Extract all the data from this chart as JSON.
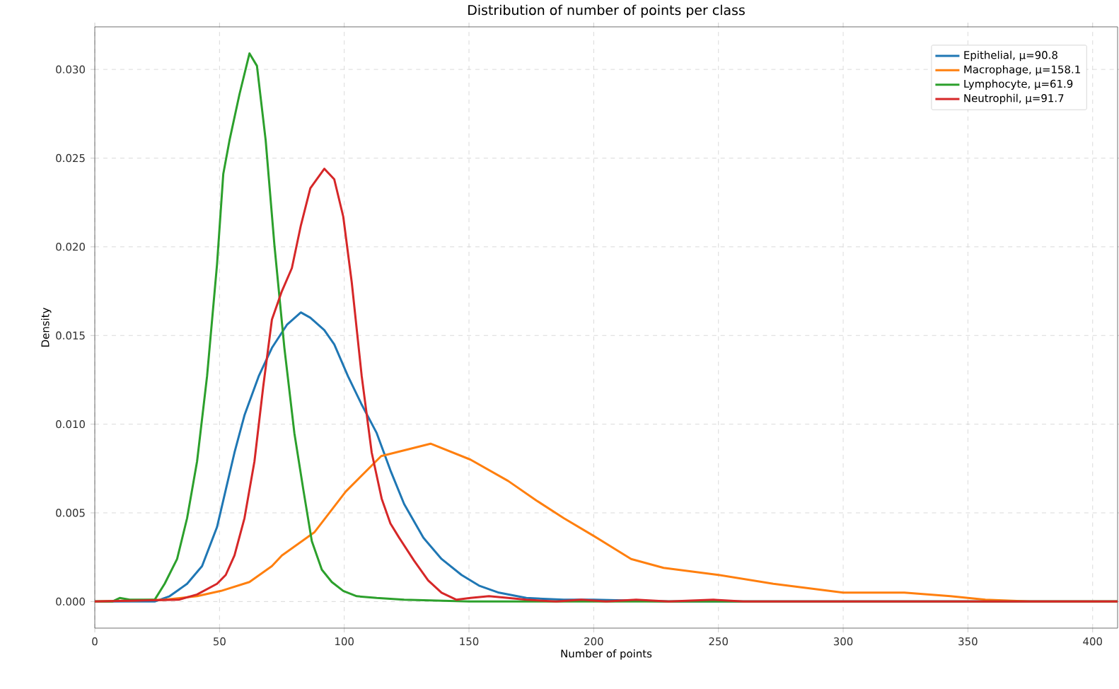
{
  "chart_data": {
    "type": "line",
    "title": "Distribution of number of points per class",
    "xlabel": "Number of points",
    "ylabel": "Density",
    "xlim": [
      0,
      410
    ],
    "ylim": [
      -0.0015,
      0.0324
    ],
    "xticks": [
      0,
      50,
      100,
      150,
      200,
      250,
      300,
      350,
      400
    ],
    "yticks": [
      {
        "value": 0,
        "label": "0.000"
      },
      {
        "value": 0.005,
        "label": "0.005"
      },
      {
        "value": 0.01,
        "label": "0.010"
      },
      {
        "value": 0.015,
        "label": "0.015"
      },
      {
        "value": 0.02,
        "label": "0.020"
      },
      {
        "value": 0.025,
        "label": "0.025"
      },
      {
        "value": 0.03,
        "label": "0.030"
      }
    ],
    "grid": true,
    "legend": "top right",
    "marker": "none",
    "line_style": "solid",
    "series": [
      {
        "name": "Epithelial, μ=90.8",
        "color": "#1f77b4",
        "x": [
          0,
          24,
          30,
          37,
          43,
          49,
          52.5,
          56,
          60,
          65.7,
          71,
          77,
          82.6,
          86.4,
          92,
          96,
          101.5,
          107,
          113,
          118.5,
          124,
          131.7,
          139,
          147,
          154,
          162,
          173,
          188,
          200,
          230,
          410
        ],
        "values": [
          0,
          0,
          0.0003,
          0.001,
          0.002,
          0.0042,
          0.0063,
          0.0084,
          0.0105,
          0.0127,
          0.0143,
          0.0156,
          0.0163,
          0.016,
          0.0153,
          0.0145,
          0.0127,
          0.0111,
          0.0095,
          0.0074,
          0.0055,
          0.0036,
          0.0024,
          0.0015,
          0.0009,
          0.0005,
          0.0002,
          0.0001,
          0.0001,
          0,
          0
        ]
      },
      {
        "name": "Macrophage, μ=158.1",
        "color": "#ff7f0e",
        "x": [
          0,
          28,
          41,
          50.6,
          62,
          71,
          75,
          88,
          100.6,
          114.8,
          134.6,
          150.6,
          165.7,
          177,
          188,
          200,
          215,
          228,
          250,
          272,
          300,
          324.5,
          343,
          357,
          375,
          410
        ],
        "values": [
          0,
          0.0001,
          0.0003,
          0.0006,
          0.0011,
          0.002,
          0.0026,
          0.0039,
          0.0062,
          0.0082,
          0.0089,
          0.008,
          0.0068,
          0.0057,
          0.0047,
          0.0037,
          0.0024,
          0.0019,
          0.0015,
          0.001,
          0.0005,
          0.0005,
          0.0003,
          0.0001,
          0,
          0
        ]
      },
      {
        "name": "Lymphocyte, μ=61.9",
        "color": "#2ca02c",
        "x": [
          0,
          7,
          10,
          14,
          24,
          28,
          33,
          37,
          41,
          45,
          49,
          51.5,
          54,
          58,
          62,
          65,
          68.5,
          72,
          76,
          80,
          83.6,
          87,
          91,
          95,
          99.6,
          105,
          113,
          124,
          150,
          410
        ],
        "values": [
          0,
          0,
          0.0002,
          0.0001,
          0.0001,
          0.001,
          0.0024,
          0.0047,
          0.0079,
          0.0127,
          0.019,
          0.0241,
          0.026,
          0.0286,
          0.0309,
          0.0302,
          0.026,
          0.0201,
          0.0143,
          0.0095,
          0.0063,
          0.0034,
          0.0018,
          0.0011,
          0.0006,
          0.0003,
          0.0002,
          0.0001,
          0,
          0
        ]
      },
      {
        "name": "Neutrophil, μ=91.7",
        "color": "#d62728",
        "x": [
          0,
          33.6,
          41,
          49,
          52.5,
          56,
          60,
          64,
          67.5,
          71,
          75,
          79,
          82.6,
          86.4,
          92,
          96,
          99.6,
          103,
          107,
          111,
          115,
          118.5,
          122,
          128,
          133.6,
          139,
          145,
          150.6,
          158,
          165.7,
          173,
          185,
          195,
          205,
          217,
          230,
          248,
          260,
          410
        ],
        "values": [
          0,
          0.0001,
          0.0004,
          0.001,
          0.0015,
          0.0026,
          0.0047,
          0.0079,
          0.0121,
          0.0159,
          0.0175,
          0.0188,
          0.0212,
          0.0233,
          0.0244,
          0.0238,
          0.0217,
          0.018,
          0.0127,
          0.0084,
          0.0058,
          0.0044,
          0.0036,
          0.0023,
          0.0012,
          0.0005,
          0.0001,
          0.0002,
          0.0003,
          0.0002,
          0.0001,
          0,
          0.0001,
          0,
          0.0001,
          0,
          0.0001,
          0,
          0
        ]
      }
    ]
  }
}
